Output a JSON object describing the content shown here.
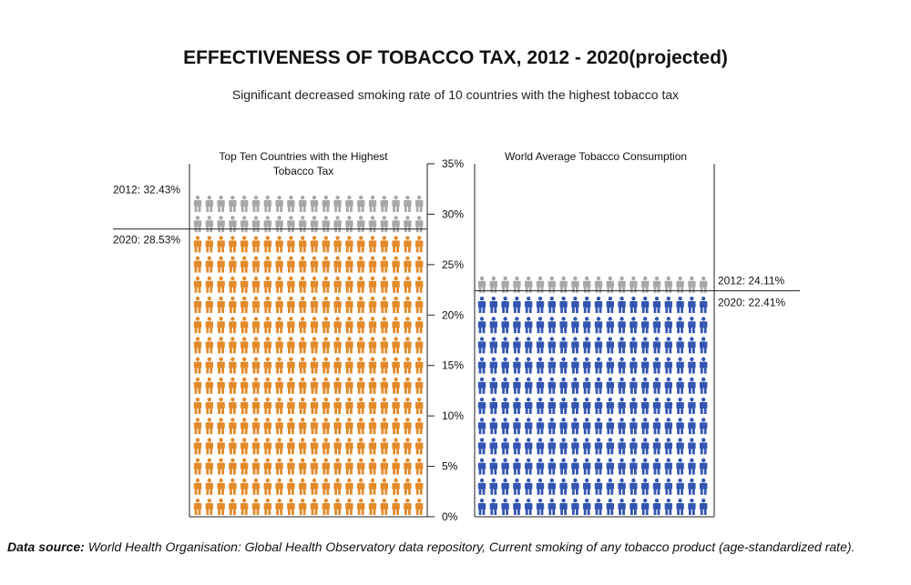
{
  "title": "EFFECTIVENESS OF TOBACCO TAX, 2012 - 2020(projected)",
  "subtitle": "Significant decreased smoking rate of 10 countries with the highest tobacco tax",
  "footer": {
    "label": "Data source:",
    "text": " World Health Organisation: Global Health Observatory data repository, Current smoking of any tobacco product (age-standardized rate)."
  },
  "colors": {
    "gray": "#a8a8a8",
    "orange": "#e38a2a",
    "blue": "#3456b2"
  },
  "chart_data": {
    "type": "bar",
    "style": "pictogram",
    "ylim": [
      0,
      35
    ],
    "yticks": [
      {
        "value": 0,
        "label": "0%"
      },
      {
        "value": 5,
        "label": "5%"
      },
      {
        "value": 10,
        "label": "10%"
      },
      {
        "value": 15,
        "label": "15%"
      },
      {
        "value": 20,
        "label": "20%"
      },
      {
        "value": 25,
        "label": "25%"
      },
      {
        "value": 30,
        "label": "30%"
      },
      {
        "value": 35,
        "label": "35%"
      }
    ],
    "groups": [
      {
        "title_lines": [
          "Top Ten Countries with the Highest",
          "Tobacco Tax"
        ],
        "label_side": "left",
        "values": [
          {
            "year": "2012",
            "value": 32.43,
            "label": "2012:  32.43%",
            "color": "gray"
          },
          {
            "year": "2020",
            "value": 28.53,
            "label": "2020:  28.53%",
            "color": "orange"
          }
        ]
      },
      {
        "title_lines": [
          "World Average Tobacco Consumption"
        ],
        "label_side": "right",
        "values": [
          {
            "year": "2012",
            "value": 24.11,
            "label": "2012:  24.11%",
            "color": "gray"
          },
          {
            "year": "2020",
            "value": 22.41,
            "label": "2020:  22.41%",
            "color": "blue"
          }
        ]
      }
    ]
  }
}
